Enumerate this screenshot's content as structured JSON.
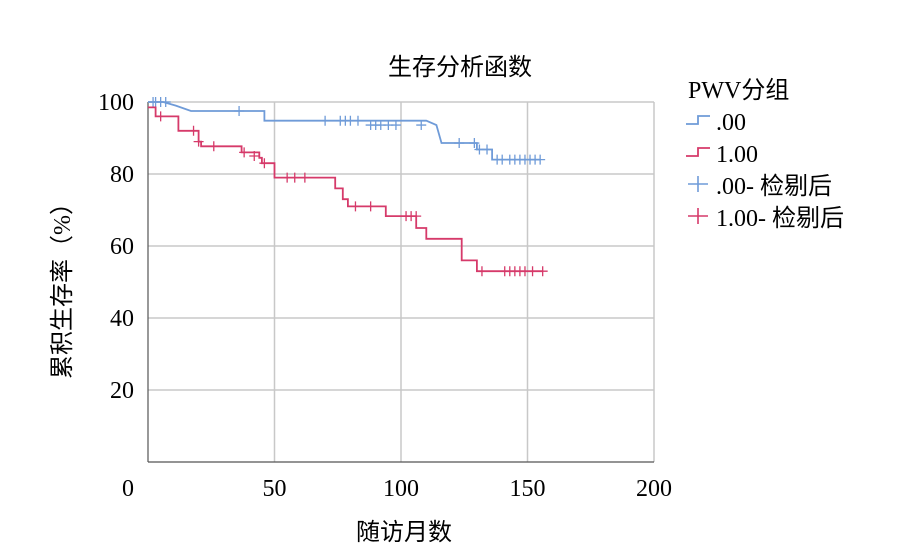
{
  "chart_data": {
    "type": "line",
    "subtype": "kaplan-meier",
    "title": "生存分析函数",
    "xlabel": "随访月数",
    "ylabel": "累积生存率（%）",
    "xlim": [
      0,
      200
    ],
    "ylim": [
      0,
      100
    ],
    "xticks": [
      0,
      50,
      100,
      150,
      200
    ],
    "yticks": [
      20,
      40,
      60,
      80,
      100
    ],
    "grid": true,
    "legend": {
      "title": "PWV分组",
      "placement": "top-right-outside",
      "entries": [
        ".00",
        "1.00",
        ".00- 检剔后",
        "1.00- 检剔后"
      ]
    },
    "series": [
      {
        "name": ".00",
        "color": "#6f9bd8",
        "steps": [
          [
            0,
            100
          ],
          [
            6,
            100
          ],
          [
            11,
            99
          ],
          [
            17,
            97.5
          ],
          [
            46,
            97.5
          ],
          [
            46,
            94.8
          ],
          [
            110,
            94.8
          ],
          [
            114,
            93.6
          ],
          [
            116,
            88.6
          ],
          [
            130,
            88.6
          ],
          [
            130,
            86.8
          ],
          [
            136,
            86.8
          ],
          [
            136,
            84.0
          ],
          [
            155,
            84.0
          ]
        ],
        "censored": [
          [
            2,
            100
          ],
          [
            3,
            100
          ],
          [
            5,
            100
          ],
          [
            7,
            100
          ],
          [
            36,
            97.5
          ],
          [
            70,
            94.8
          ],
          [
            76,
            94.8
          ],
          [
            78,
            94.8
          ],
          [
            80,
            94.8
          ],
          [
            83,
            94.8
          ],
          [
            88,
            93.6
          ],
          [
            90,
            93.6
          ],
          [
            92,
            93.6
          ],
          [
            95,
            93.6
          ],
          [
            98,
            93.6
          ],
          [
            108,
            93.6
          ],
          [
            123,
            88.6
          ],
          [
            129,
            88.6
          ],
          [
            131,
            86.8
          ],
          [
            134,
            86.8
          ],
          [
            138,
            84.0
          ],
          [
            140,
            84.0
          ],
          [
            143,
            84.0
          ],
          [
            145,
            84.0
          ],
          [
            147,
            84.0
          ],
          [
            149,
            84.0
          ],
          [
            151,
            84.0
          ],
          [
            153,
            84.0
          ],
          [
            155,
            84.0
          ]
        ]
      },
      {
        "name": "1.00",
        "color": "#d63a6a",
        "steps": [
          [
            0,
            98.5
          ],
          [
            3,
            98.5
          ],
          [
            3,
            96.0
          ],
          [
            12,
            96.0
          ],
          [
            12,
            92.0
          ],
          [
            20,
            92.0
          ],
          [
            20,
            89.0
          ],
          [
            21,
            89.0
          ],
          [
            21,
            87.7
          ],
          [
            37,
            87.7
          ],
          [
            37,
            86.0
          ],
          [
            44,
            86.0
          ],
          [
            44,
            84.5
          ],
          [
            45,
            84.5
          ],
          [
            45,
            83.0
          ],
          [
            50,
            83.0
          ],
          [
            50,
            79.0
          ],
          [
            74,
            79.0
          ],
          [
            74,
            76.0
          ],
          [
            77,
            76.0
          ],
          [
            77,
            73.0
          ],
          [
            79,
            73.0
          ],
          [
            79,
            71.0
          ],
          [
            94,
            71.0
          ],
          [
            94,
            68.3
          ],
          [
            106,
            68.3
          ],
          [
            106,
            65.0
          ],
          [
            110,
            65.0
          ],
          [
            110,
            62.0
          ],
          [
            124,
            62.0
          ],
          [
            124,
            56.0
          ],
          [
            130,
            56.0
          ],
          [
            130,
            53.0
          ],
          [
            156,
            53.0
          ]
        ],
        "censored": [
          [
            5,
            96.0
          ],
          [
            18,
            92.0
          ],
          [
            20,
            89.0
          ],
          [
            26,
            87.7
          ],
          [
            38,
            86.0
          ],
          [
            42,
            85.0
          ],
          [
            46,
            83.0
          ],
          [
            55,
            79.0
          ],
          [
            58,
            79.0
          ],
          [
            62,
            79.0
          ],
          [
            82,
            71.0
          ],
          [
            88,
            71.0
          ],
          [
            102,
            68.3
          ],
          [
            104,
            68.3
          ],
          [
            106,
            68.3
          ],
          [
            132,
            53.0
          ],
          [
            141,
            53.0
          ],
          [
            143,
            53.0
          ],
          [
            145,
            53.0
          ],
          [
            147,
            53.0
          ],
          [
            149,
            53.0
          ],
          [
            152,
            53.0
          ],
          [
            156,
            53.0
          ]
        ]
      }
    ]
  }
}
